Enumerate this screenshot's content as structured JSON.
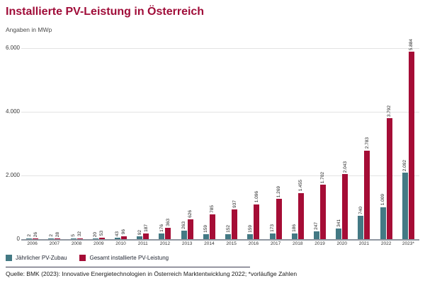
{
  "header": {
    "title": "Installierte PV-Leistung in Österreich",
    "subtitle": "Angaben in MWp"
  },
  "chart_data": {
    "type": "bar",
    "title": "Installierte PV-Leistung in Österreich",
    "ylabel": "Angaben in MWp",
    "ylim": [
      0,
      6000
    ],
    "yticks": [
      0,
      2000,
      4000,
      6000
    ],
    "ytick_labels": [
      "0",
      "2.000",
      "4.000",
      "6.000"
    ],
    "grid": true,
    "legend_position": "bottom",
    "categories": [
      "2006",
      "2007",
      "2008",
      "2009",
      "2010",
      "2011",
      "2012",
      "2013",
      "2014",
      "2015",
      "2016",
      "2017",
      "2018",
      "2019",
      "2020",
      "2021",
      "2022",
      "2023*"
    ],
    "series": [
      {
        "name": "Jährlicher PV-Zubau",
        "color": "#437984",
        "values": [
          2,
          2,
          5,
          20,
          43,
          92,
          176,
          263,
          159,
          152,
          159,
          173,
          186,
          247,
          341,
          740,
          1009,
          2092
        ],
        "labels": [
          "2",
          "2",
          "5",
          "20",
          "43",
          "92",
          "176",
          "263",
          "159",
          "152",
          "159",
          "173",
          "186",
          "247",
          "341",
          "740",
          "1.009",
          "2.092"
        ]
      },
      {
        "name": "Gesamt installierte PV-Leistung",
        "color": "#a50d36",
        "values": [
          26,
          28,
          32,
          53,
          96,
          187,
          363,
          626,
          785,
          937,
          1096,
          1269,
          1455,
          1702,
          2043,
          2783,
          3792,
          5884
        ],
        "labels": [
          "26",
          "28",
          "32",
          "53",
          "96",
          "187",
          "363",
          "626",
          "785",
          "937",
          "1.096",
          "1.269",
          "1.455",
          "1.702",
          "2.043",
          "2.783",
          "3.792",
          "5.884"
        ]
      }
    ]
  },
  "footer": {
    "source": "Quelle: BMK (2023): Innovative Energietechnologien in Österreich Marktentwicklung 2022; *vorläufige Zahlen"
  }
}
